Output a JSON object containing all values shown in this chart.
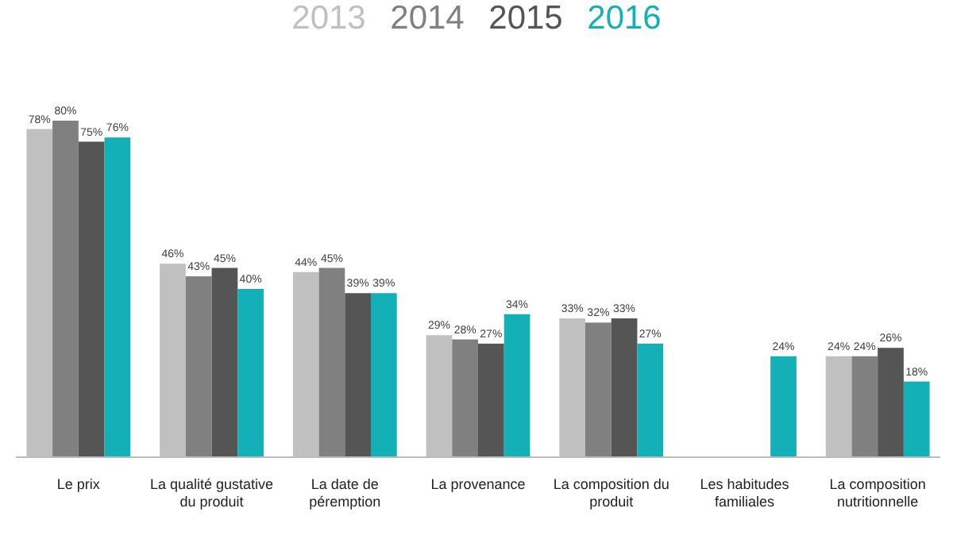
{
  "chart_data": {
    "type": "bar",
    "categories": [
      "Le prix",
      "La qualité gustative du produit",
      "La date de péremption",
      "La provenance",
      "La composition du produit",
      "Les habitudes familiales",
      "La composition nutritionnelle"
    ],
    "series": [
      {
        "name": "2013",
        "color": "#c0c0c0",
        "values": [
          78,
          46,
          44,
          29,
          33,
          null,
          24
        ],
        "value_labels": [
          "78%",
          "46%",
          "44%",
          "29%",
          "33%",
          null,
          "24%"
        ]
      },
      {
        "name": "2014",
        "color": "#808080",
        "values": [
          80,
          43,
          45,
          28,
          32,
          null,
          24
        ],
        "value_labels": [
          "80%",
          "43%",
          "45%",
          "28%",
          "32%",
          null,
          "24%"
        ]
      },
      {
        "name": "2015",
        "color": "#555555",
        "values": [
          75,
          45,
          39,
          27,
          33,
          null,
          26
        ],
        "value_labels": [
          "75%",
          "45%",
          "39%",
          "27%",
          "33%",
          null,
          "26%"
        ]
      },
      {
        "name": "2016",
        "color": "#14b0b8",
        "values": [
          76,
          40,
          39,
          34,
          27,
          24,
          18
        ],
        "value_labels": [
          "76%",
          "40%",
          "39%",
          "34%",
          "27%",
          "24%",
          "18%"
        ]
      }
    ],
    "legend": "top"
  }
}
